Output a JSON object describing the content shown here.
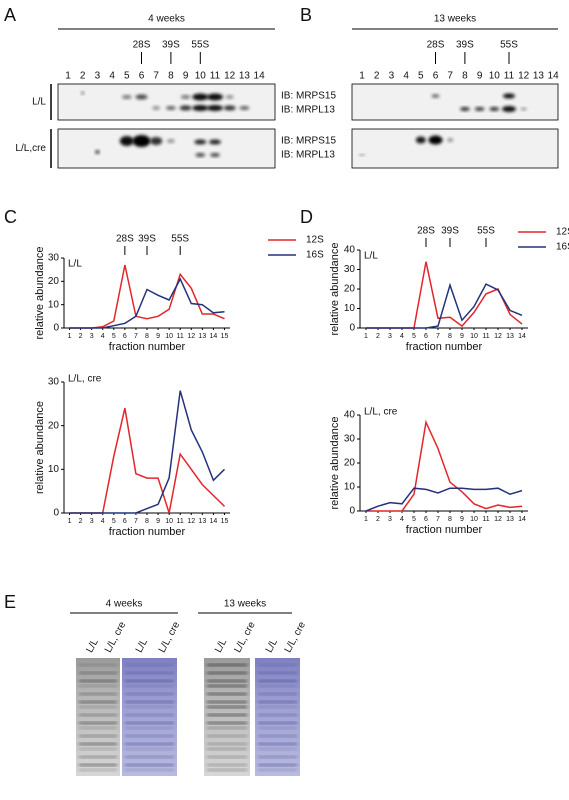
{
  "blots": [
    {
      "letter": "A",
      "title": "4 weeks",
      "lanes": [
        1,
        2,
        3,
        4,
        5,
        6,
        7,
        8,
        9,
        10,
        11,
        12,
        13,
        14
      ],
      "markers": [
        {
          "label": "28S",
          "lane": 6
        },
        {
          "label": "39S",
          "lane": 8
        },
        {
          "label": "55S",
          "lane": 10
        }
      ],
      "rows": [
        "L/L",
        "L/L,cre"
      ],
      "antibodies": [
        "IB: MRPS15",
        "IB: MRPL13"
      ]
    },
    {
      "letter": "B",
      "title": "13 weeks",
      "lanes": [
        1,
        2,
        3,
        4,
        5,
        6,
        7,
        8,
        9,
        10,
        11,
        12,
        13,
        14
      ],
      "markers": [
        {
          "label": "28S",
          "lane": 6
        },
        {
          "label": "39S",
          "lane": 8
        },
        {
          "label": "55S",
          "lane": 11
        }
      ]
    }
  ],
  "chart_data": [
    {
      "type": "line",
      "panel": "C",
      "label": "L/L",
      "ylabel": "relative abundance",
      "xlabel": "fraction number",
      "x": [
        1,
        2,
        3,
        4,
        5,
        6,
        7,
        8,
        9,
        10,
        11,
        12,
        13,
        14,
        15
      ],
      "xlim": [
        0.5,
        15.5
      ],
      "xticks": [
        1,
        2,
        3,
        4,
        5,
        6,
        7,
        8,
        9,
        10,
        11,
        12,
        13,
        14,
        15
      ],
      "ylim": [
        0,
        30
      ],
      "yticks": [
        0,
        10,
        20,
        30
      ],
      "annotations": [
        {
          "text": "28S",
          "x": 6
        },
        {
          "text": "39S",
          "x": 8
        },
        {
          "text": "55S",
          "x": 11
        }
      ],
      "series": [
        {
          "name": "12S",
          "color": "#e3262b",
          "values": [
            0,
            0,
            0,
            0.5,
            3,
            27,
            5,
            4,
            5,
            8,
            23,
            17,
            6,
            6,
            4
          ]
        },
        {
          "name": "16S",
          "color": "#23327a",
          "values": [
            0,
            0,
            0,
            0,
            1,
            2,
            5,
            16.5,
            14,
            12,
            21,
            10.5,
            10,
            6.5,
            7
          ]
        }
      ]
    },
    {
      "type": "line",
      "label": "L/L, cre",
      "ylabel": "relative abundance",
      "xlabel": "fraction number",
      "x": [
        1,
        2,
        3,
        4,
        5,
        6,
        7,
        8,
        9,
        10,
        11,
        12,
        13,
        14,
        15
      ],
      "xlim": [
        0.5,
        15.5
      ],
      "xticks": [
        1,
        2,
        3,
        4,
        5,
        6,
        7,
        8,
        9,
        10,
        11,
        12,
        13,
        14,
        15
      ],
      "ylim": [
        0,
        30
      ],
      "yticks": [
        0,
        10,
        20,
        30
      ],
      "series": [
        {
          "color": "#e3262b",
          "values": [
            0,
            0,
            0,
            0,
            13,
            24,
            9,
            8,
            8,
            0,
            13.5,
            10,
            6.5,
            4,
            1.5
          ]
        },
        {
          "color": "#23327a",
          "values": [
            0,
            0,
            0,
            0,
            0,
            0,
            0,
            1,
            2,
            8,
            28,
            19,
            14,
            7.5,
            10
          ]
        }
      ]
    },
    {
      "type": "line",
      "panel": "D",
      "label": "L/L",
      "ylabel": "relative abundance",
      "xlabel": "fraction number",
      "x": [
        1,
        2,
        3,
        4,
        5,
        6,
        7,
        8,
        9,
        10,
        11,
        12,
        13,
        14
      ],
      "xlim": [
        0.5,
        14.5
      ],
      "xticks": [
        1,
        2,
        3,
        4,
        5,
        6,
        7,
        8,
        9,
        10,
        11,
        12,
        13,
        14
      ],
      "ylim": [
        0,
        40
      ],
      "yticks": [
        0,
        10,
        20,
        30,
        40
      ],
      "annotations": [
        {
          "text": "28S",
          "x": 6
        },
        {
          "text": "39S",
          "x": 8
        },
        {
          "text": "55S",
          "x": 11
        }
      ],
      "series": [
        {
          "name": "12S",
          "color": "#e3262b",
          "values": [
            0,
            0,
            0,
            0,
            0,
            34,
            5,
            5.5,
            1,
            8,
            17.5,
            20,
            7,
            2
          ]
        },
        {
          "name": "16S",
          "color": "#23327a",
          "values": [
            0,
            0,
            0,
            0,
            0,
            0,
            1,
            22,
            4,
            11,
            22.5,
            19.5,
            9,
            6.5
          ]
        }
      ]
    },
    {
      "type": "line",
      "label": "L/L, cre",
      "ylabel": "relative abundance",
      "xlabel": "fraction number",
      "x": [
        1,
        2,
        3,
        4,
        5,
        6,
        7,
        8,
        9,
        10,
        11,
        12,
        13,
        14
      ],
      "xlim": [
        0.5,
        14.5
      ],
      "xticks": [
        1,
        2,
        3,
        4,
        5,
        6,
        7,
        8,
        9,
        10,
        11,
        12,
        13,
        14
      ],
      "ylim": [
        0,
        40
      ],
      "yticks": [
        0,
        10,
        20,
        30,
        40
      ],
      "series": [
        {
          "color": "#e3262b",
          "values": [
            0,
            0,
            0,
            0,
            7,
            37,
            26,
            12,
            8,
            3,
            1,
            2.5,
            1.5,
            2
          ]
        },
        {
          "color": "#23327a",
          "values": [
            0,
            2,
            3.5,
            3,
            9.5,
            9,
            7.5,
            9.5,
            9.5,
            9,
            9,
            9.5,
            7,
            8.5
          ]
        }
      ]
    }
  ],
  "gels": {
    "letter": "E",
    "groups": [
      {
        "title": "4 weeks",
        "lanes": [
          "L/L",
          "L/L, cre",
          "L/L",
          "L/L, cre"
        ]
      },
      {
        "title": "13 weeks",
        "lanes": [
          "L/L",
          "L/L, cre",
          "L/L",
          "L/L, cre"
        ]
      }
    ]
  }
}
